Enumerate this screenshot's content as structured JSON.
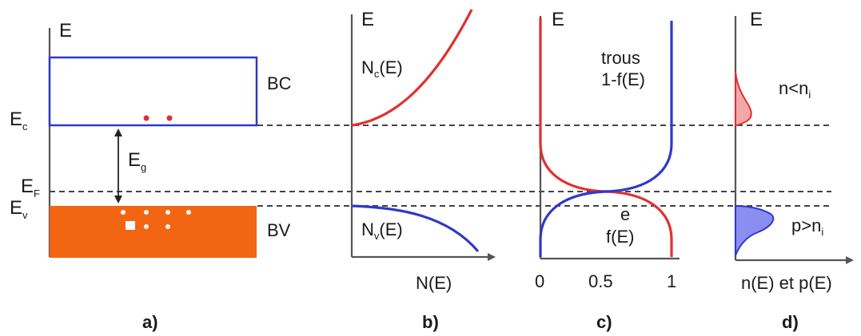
{
  "panel_a": {
    "axis_label": "E",
    "band_conduction": "BC",
    "band_valence": "BV",
    "ec_main": "E",
    "ec_sub": "c",
    "ef_main": "E",
    "ef_sub": "F",
    "ev_main": "E",
    "ev_sub": "v",
    "eg_main": "E",
    "eg_sub": "g",
    "caption": "a)",
    "colors": {
      "conduction_outline": "#2f39c8",
      "valence_fill": "#f26512",
      "electron_dot": "#e03030"
    }
  },
  "panel_b": {
    "axis_label": "E",
    "nc_main": "N",
    "nc_sub": "c",
    "nc_tail": "(E)",
    "nv_main": "N",
    "nv_sub": "v",
    "nv_tail": "(E)",
    "xlabel": "N(E)",
    "caption": "b)",
    "colors": {
      "nc_curve": "#e03030",
      "nv_curve": "#2f39c8"
    }
  },
  "panel_c": {
    "axis_label": "E",
    "holes_title": "trous",
    "holes_func": "1-f(E)",
    "electron_label": "e",
    "electron_func": "f(E)",
    "ticks": [
      "0",
      "0.5",
      "1"
    ],
    "caption": "c)",
    "colors": {
      "f_curve": "#e03030",
      "one_minus_f_curve": "#2f39c8"
    }
  },
  "panel_d": {
    "axis_label": "E",
    "n_rel_main": "n<n",
    "n_rel_sub": "i",
    "p_rel_main": "p>n",
    "p_rel_sub": "i",
    "xlabel": "n(E) et p(E)",
    "caption": "d)",
    "colors": {
      "n_fill": "#f3a8a8",
      "n_stroke": "#e03030",
      "p_fill": "#8b8ef0",
      "p_stroke": "#2f39c8"
    }
  }
}
